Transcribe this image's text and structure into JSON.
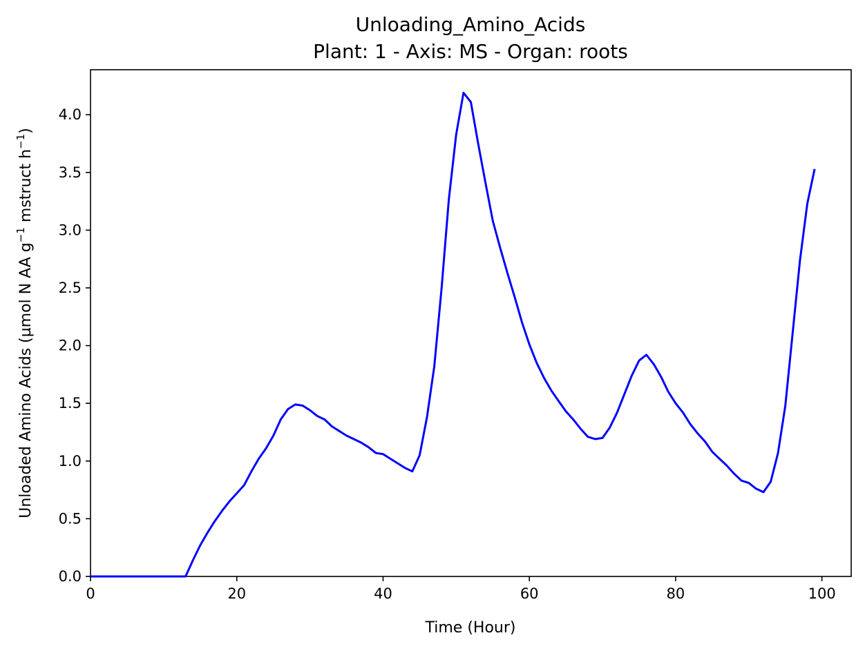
{
  "chart_data": {
    "type": "line",
    "title": "Unloading_Amino_Acids",
    "subtitle": "Plant: 1 - Axis: MS - Organ: roots",
    "xlabel": "Time (Hour)",
    "ylabel_parts": [
      "Unloaded Amino Acids (µmol N AA g",
      "−1",
      " mstruct h",
      "−1",
      ")"
    ],
    "xlim": [
      0,
      104
    ],
    "ylim": [
      0,
      4.39
    ],
    "x_ticks": [
      0,
      20,
      40,
      60,
      80,
      100
    ],
    "y_ticks": [
      0.0,
      0.5,
      1.0,
      1.5,
      2.0,
      2.5,
      3.0,
      3.5,
      4.0
    ],
    "x_tick_labels": [
      "0",
      "20",
      "40",
      "60",
      "80",
      "100"
    ],
    "y_tick_labels": [
      "0.0",
      "0.5",
      "1.0",
      "1.5",
      "2.0",
      "2.5",
      "3.0",
      "3.5",
      "4.0"
    ],
    "grid": false,
    "series": [
      {
        "color": "#0000ff",
        "x": [
          0,
          1,
          2,
          3,
          4,
          5,
          6,
          7,
          8,
          9,
          10,
          11,
          12,
          13,
          14,
          15,
          16,
          17,
          18,
          19,
          20,
          21,
          22,
          23,
          24,
          25,
          26,
          27,
          28,
          29,
          30,
          31,
          32,
          33,
          34,
          35,
          36,
          37,
          38,
          39,
          40,
          41,
          42,
          43,
          44,
          45,
          46,
          47,
          48,
          49,
          50,
          51,
          52,
          53,
          54,
          55,
          56,
          57,
          58,
          59,
          60,
          61,
          62,
          63,
          64,
          65,
          66,
          67,
          68,
          69,
          70,
          71,
          72,
          73,
          74,
          75,
          76,
          77,
          78,
          79,
          80,
          81,
          82,
          83,
          84,
          85,
          86,
          87,
          88,
          89,
          90,
          91,
          92,
          93,
          94,
          95,
          96,
          97,
          98,
          99
        ],
        "y": [
          0,
          0,
          0,
          0,
          0,
          0,
          0,
          0,
          0,
          0,
          0,
          0,
          0,
          0,
          0.14,
          0.27,
          0.38,
          0.48,
          0.57,
          0.65,
          0.72,
          0.79,
          0.91,
          1.02,
          1.11,
          1.22,
          1.36,
          1.45,
          1.49,
          1.48,
          1.44,
          1.39,
          1.36,
          1.3,
          1.26,
          1.22,
          1.19,
          1.16,
          1.12,
          1.07,
          1.06,
          1.02,
          0.98,
          0.94,
          0.91,
          1.05,
          1.38,
          1.82,
          2.5,
          3.27,
          3.83,
          4.19,
          4.11,
          3.75,
          3.41,
          3.08,
          2.85,
          2.63,
          2.42,
          2.2,
          2.01,
          1.85,
          1.72,
          1.61,
          1.52,
          1.43,
          1.36,
          1.28,
          1.21,
          1.19,
          1.2,
          1.29,
          1.42,
          1.58,
          1.74,
          1.87,
          1.92,
          1.84,
          1.73,
          1.6,
          1.5,
          1.42,
          1.32,
          1.24,
          1.17,
          1.08,
          1.02,
          0.96,
          0.89,
          0.83,
          0.81,
          0.76,
          0.73,
          0.82,
          1.07,
          1.48,
          2.11,
          2.74,
          3.23,
          3.53
        ]
      }
    ]
  }
}
